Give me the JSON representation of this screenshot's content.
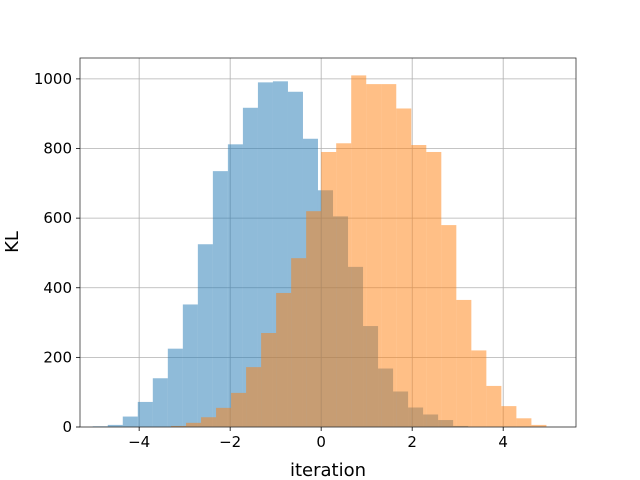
{
  "chart_data": {
    "type": "bar",
    "xlabel": "iteration",
    "ylabel": "KL",
    "xlim": [
      -5.3,
      5.6
    ],
    "ylim": [
      0,
      1060
    ],
    "xticks": [
      -4,
      -2,
      0,
      2,
      4
    ],
    "xtick_labels": [
      "−4",
      "−2",
      "0",
      "2",
      "4"
    ],
    "yticks": [
      0,
      200,
      400,
      600,
      800,
      1000
    ],
    "ytick_labels": [
      "0",
      "200",
      "400",
      "600",
      "800",
      "1000"
    ],
    "grid": true,
    "legend": "none",
    "bin_width": 0.33,
    "series": [
      {
        "color": "#1f77b4",
        "opacity": 0.5,
        "bin_starts": [
          -5.02,
          -4.69,
          -4.36,
          -4.03,
          -3.7,
          -3.37,
          -3.04,
          -2.71,
          -2.38,
          -2.05,
          -1.72,
          -1.39,
          -1.06,
          -0.73,
          -0.4,
          -0.07,
          0.26,
          0.59,
          0.92,
          1.25,
          1.58,
          1.91,
          2.24,
          2.57,
          2.9
        ],
        "values": [
          2,
          6,
          30,
          72,
          140,
          225,
          352,
          525,
          735,
          812,
          917,
          990,
          993,
          963,
          828,
          680,
          605,
          460,
          290,
          168,
          102,
          56,
          36,
          20,
          3
        ]
      },
      {
        "color": "#ff7f0e",
        "opacity": 0.5,
        "bin_starts": [
          -3.3,
          -2.97,
          -2.64,
          -2.31,
          -1.98,
          -1.65,
          -1.32,
          -0.99,
          -0.66,
          -0.33,
          0.0,
          0.33,
          0.66,
          0.99,
          1.32,
          1.65,
          1.98,
          2.31,
          2.64,
          2.97,
          3.3,
          3.63,
          3.96,
          4.29,
          4.62
        ],
        "values": [
          3,
          12,
          28,
          55,
          98,
          172,
          270,
          385,
          485,
          620,
          790,
          815,
          1010,
          985,
          985,
          915,
          810,
          790,
          580,
          365,
          220,
          118,
          60,
          25,
          6
        ]
      }
    ]
  }
}
